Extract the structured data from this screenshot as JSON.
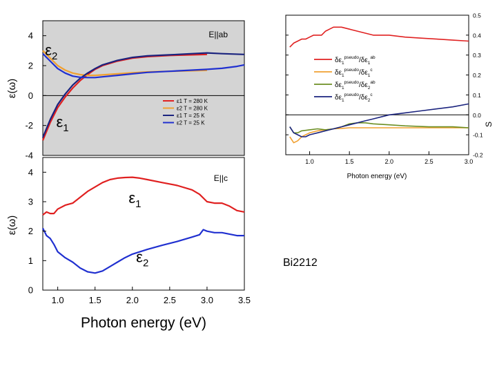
{
  "caption": "Bi2212",
  "chart_data": [
    {
      "id": "eab",
      "type": "line",
      "panel_label": "E||ab",
      "ylabel": "ε(ω)",
      "xlim": [
        0.8,
        3.5
      ],
      "ylim": [
        -4,
        5
      ],
      "yticks": [
        "-4",
        "-2",
        "0",
        "2",
        "4"
      ],
      "zero_line": true,
      "annotations": [
        {
          "text": "ε",
          "sub": "2",
          "x": 0.83,
          "y": 2.7
        },
        {
          "text": "ε",
          "sub": "1",
          "x": 0.98,
          "y": -2.1
        }
      ],
      "series": [
        {
          "name": "ε1 T = 280 K",
          "color": "#e02020",
          "x": [
            0.8,
            0.9,
            1.0,
            1.1,
            1.2,
            1.3,
            1.4,
            1.5,
            1.6,
            1.8,
            2.0,
            2.2,
            2.5,
            2.8,
            3.0
          ],
          "y": [
            -3.0,
            -1.8,
            -0.8,
            -0.1,
            0.5,
            1.0,
            1.4,
            1.75,
            2.0,
            2.3,
            2.5,
            2.6,
            2.68,
            2.72,
            2.75
          ]
        },
        {
          "name": "ε2 T = 280 K",
          "color": "#f0a030",
          "x": [
            0.8,
            0.9,
            1.0,
            1.1,
            1.2,
            1.3,
            1.4,
            1.5,
            1.6,
            1.8,
            2.0,
            2.2,
            2.5,
            2.8,
            3.0
          ],
          "y": [
            3.0,
            2.5,
            2.0,
            1.7,
            1.5,
            1.4,
            1.35,
            1.35,
            1.38,
            1.45,
            1.52,
            1.58,
            1.62,
            1.66,
            1.68
          ]
        },
        {
          "name": "ε1 T = 25 K",
          "color": "#1a237e",
          "x": [
            0.8,
            0.9,
            1.0,
            1.1,
            1.2,
            1.3,
            1.4,
            1.5,
            1.6,
            1.8,
            2.0,
            2.2,
            2.5,
            2.8,
            3.0,
            3.2,
            3.5
          ],
          "y": [
            -2.8,
            -1.6,
            -0.6,
            0.1,
            0.7,
            1.15,
            1.5,
            1.8,
            2.05,
            2.35,
            2.55,
            2.65,
            2.72,
            2.8,
            2.85,
            2.8,
            2.75
          ]
        },
        {
          "name": "ε2 T = 25 K",
          "color": "#2030d0",
          "x": [
            0.8,
            0.9,
            1.0,
            1.1,
            1.2,
            1.3,
            1.4,
            1.5,
            1.6,
            1.8,
            2.0,
            2.2,
            2.5,
            2.8,
            3.0,
            3.2,
            3.4,
            3.5
          ],
          "y": [
            2.8,
            2.3,
            1.8,
            1.5,
            1.3,
            1.22,
            1.2,
            1.2,
            1.25,
            1.35,
            1.45,
            1.55,
            1.62,
            1.7,
            1.75,
            1.82,
            1.95,
            2.05
          ]
        }
      ]
    },
    {
      "id": "ec",
      "type": "line",
      "panel_label": "E||c",
      "xlabel": "Photon energy (eV)",
      "ylabel": "ε(ω)",
      "xlim": [
        0.8,
        3.5
      ],
      "ylim": [
        0,
        4.5
      ],
      "xticks": [
        "1.0",
        "1.5",
        "2.0",
        "2.5",
        "3.0",
        "3.5"
      ],
      "yticks": [
        "0",
        "1",
        "2",
        "3",
        "4"
      ],
      "annotations": [
        {
          "text": "ε",
          "sub": "1",
          "x": 1.95,
          "y": 2.95
        },
        {
          "text": "ε",
          "sub": "2",
          "x": 2.05,
          "y": 0.95
        }
      ],
      "series": [
        {
          "name": "ε1",
          "color": "#e02020",
          "x": [
            0.8,
            0.85,
            0.9,
            0.95,
            1.0,
            1.1,
            1.2,
            1.3,
            1.4,
            1.5,
            1.6,
            1.7,
            1.8,
            1.9,
            2.0,
            2.1,
            2.2,
            2.4,
            2.6,
            2.8,
            2.9,
            3.0,
            3.1,
            3.2,
            3.3,
            3.4,
            3.5
          ],
          "y": [
            2.55,
            2.65,
            2.6,
            2.6,
            2.75,
            2.88,
            2.95,
            3.15,
            3.35,
            3.5,
            3.65,
            3.75,
            3.8,
            3.82,
            3.83,
            3.8,
            3.75,
            3.65,
            3.55,
            3.4,
            3.25,
            3.0,
            2.95,
            2.95,
            2.85,
            2.7,
            2.65
          ]
        },
        {
          "name": "ε2",
          "color": "#2030d0",
          "x": [
            0.8,
            0.85,
            0.9,
            0.95,
            1.0,
            1.1,
            1.2,
            1.3,
            1.4,
            1.5,
            1.6,
            1.7,
            1.8,
            1.9,
            2.0,
            2.2,
            2.4,
            2.6,
            2.8,
            2.9,
            2.95,
            3.0,
            3.1,
            3.2,
            3.3,
            3.4,
            3.5
          ],
          "y": [
            2.1,
            1.85,
            1.75,
            1.55,
            1.3,
            1.1,
            0.95,
            0.75,
            0.62,
            0.58,
            0.65,
            0.8,
            0.95,
            1.1,
            1.22,
            1.38,
            1.52,
            1.65,
            1.8,
            1.88,
            2.05,
            2.0,
            1.95,
            1.95,
            1.9,
            1.85,
            1.85
          ]
        }
      ]
    },
    {
      "id": "sens",
      "type": "line",
      "xlabel": "Photon energy (eV)",
      "ylabel": "S",
      "xlim": [
        0.7,
        3.0
      ],
      "ylim": [
        -0.2,
        0.5
      ],
      "xticks": [
        "1.0",
        "1.5",
        "2.0",
        "2.5",
        "3.0"
      ],
      "yticks": [
        "-0.2",
        "-0.1",
        "0.0",
        "0.1",
        "0.2",
        "0.3",
        "0.4",
        "0.5"
      ],
      "zero_line": true,
      "series": [
        {
          "name": "δε1pseudo/δε1ab",
          "label": {
            "base": "δε",
            "sub1": "1",
            "sup1": "pseudo",
            "mid": "/δε",
            "sub2": "1",
            "sup2": "ab"
          },
          "color": "#e02020",
          "x": [
            0.75,
            0.8,
            0.85,
            0.9,
            0.95,
            1.0,
            1.05,
            1.1,
            1.15,
            1.2,
            1.25,
            1.3,
            1.35,
            1.4,
            1.5,
            1.6,
            1.7,
            1.8,
            2.0,
            2.2,
            2.4,
            2.6,
            2.8,
            3.0
          ],
          "y": [
            0.34,
            0.36,
            0.37,
            0.38,
            0.38,
            0.39,
            0.4,
            0.4,
            0.4,
            0.42,
            0.43,
            0.44,
            0.44,
            0.44,
            0.43,
            0.42,
            0.41,
            0.4,
            0.4,
            0.39,
            0.385,
            0.38,
            0.375,
            0.37
          ]
        },
        {
          "name": "δε1pseudo/δε1c",
          "label": {
            "base": "δε",
            "sub1": "1",
            "sup1": "pseudo",
            "mid": "/δε",
            "sub2": "1",
            "sup2": "c"
          },
          "color": "#f0a030",
          "x": [
            0.75,
            0.8,
            0.85,
            0.9,
            0.95,
            1.0,
            1.1,
            1.2,
            1.3,
            1.4,
            1.5,
            1.6,
            1.8,
            2.0,
            2.5,
            3.0
          ],
          "y": [
            -0.11,
            -0.14,
            -0.13,
            -0.11,
            -0.1,
            -0.09,
            -0.08,
            -0.075,
            -0.07,
            -0.068,
            -0.065,
            -0.065,
            -0.065,
            -0.065,
            -0.065,
            -0.065
          ]
        },
        {
          "name": "δε1pseudo/δε2ab",
          "label": {
            "base": "δε",
            "sub1": "1",
            "sup1": "pseudo",
            "mid": "/δε",
            "sub2": "2",
            "sup2": "ab"
          },
          "color": "#6b8e23",
          "x": [
            0.75,
            0.8,
            0.85,
            0.9,
            1.0,
            1.1,
            1.2,
            1.3,
            1.4,
            1.5,
            1.6,
            1.7,
            1.8,
            2.0,
            2.2,
            2.5,
            2.8,
            3.0
          ],
          "y": [
            -0.06,
            -0.09,
            -0.09,
            -0.08,
            -0.075,
            -0.07,
            -0.075,
            -0.07,
            -0.06,
            -0.045,
            -0.04,
            -0.04,
            -0.045,
            -0.05,
            -0.055,
            -0.06,
            -0.06,
            -0.065
          ]
        },
        {
          "name": "δε1pseudo/δε2c",
          "label": {
            "base": "δε",
            "sub1": "1",
            "sup1": "pseudo",
            "mid": "/δε",
            "sub2": "2",
            "sup2": "c"
          },
          "color": "#1a237e",
          "x": [
            0.75,
            0.8,
            0.85,
            0.9,
            0.95,
            1.0,
            1.1,
            1.2,
            1.3,
            1.4,
            1.5,
            1.6,
            1.7,
            1.8,
            1.9,
            2.0,
            2.2,
            2.4,
            2.6,
            2.8,
            3.0
          ],
          "y": [
            -0.06,
            -0.09,
            -0.1,
            -0.11,
            -0.11,
            -0.1,
            -0.09,
            -0.08,
            -0.07,
            -0.06,
            -0.05,
            -0.04,
            -0.03,
            -0.02,
            -0.01,
            0.0,
            0.01,
            0.02,
            0.03,
            0.04,
            0.055
          ]
        }
      ]
    }
  ]
}
